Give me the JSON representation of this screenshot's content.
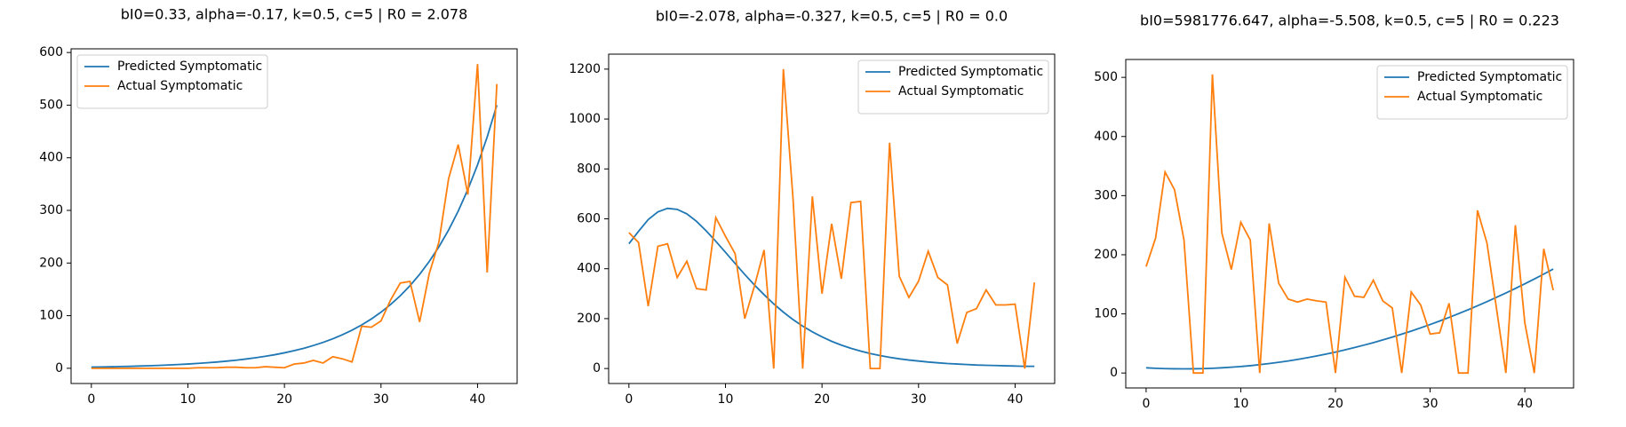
{
  "chart_data": [
    {
      "type": "line",
      "title": "bI0=0.33, alpha=-0.17, k=0.5, c=5 | R0 = 2.078",
      "x": [
        0,
        1,
        2,
        3,
        4,
        5,
        6,
        7,
        8,
        9,
        10,
        11,
        12,
        13,
        14,
        15,
        16,
        17,
        18,
        19,
        20,
        21,
        22,
        23,
        24,
        25,
        26,
        27,
        28,
        29,
        30,
        31,
        32,
        33,
        34,
        35,
        36,
        37,
        38,
        39,
        40,
        41,
        42
      ],
      "series": [
        {
          "name": "Predicted Symptomatic",
          "color": "#1f77b4",
          "values": [
            2.2,
            2.5,
            2.9,
            3.3,
            3.7,
            4.3,
            4.8,
            5.5,
            6.3,
            7.1,
            8.1,
            9.2,
            10.5,
            11.9,
            13.6,
            15.4,
            17.6,
            20.0,
            22.7,
            25.8,
            29.4,
            33.4,
            38.0,
            43.3,
            49.2,
            56.0,
            63.7,
            72.4,
            82.4,
            93.7,
            106.6,
            121.3,
            137.9,
            156.9,
            178.5,
            203.0,
            230.9,
            262.6,
            298.7,
            339.8,
            386.5,
            439.6,
            500
          ]
        },
        {
          "name": "Actual Symptomatic",
          "color": "#ff7f0e",
          "values": [
            0,
            0,
            0,
            0,
            0,
            0,
            0,
            0,
            0,
            0,
            0,
            1,
            1,
            1,
            2,
            2,
            1,
            1,
            3,
            2,
            1,
            8,
            10,
            15,
            10,
            22,
            18,
            12,
            80,
            78,
            90,
            130,
            162,
            165,
            88,
            180,
            240,
            360,
            425,
            330,
            578,
            182,
            540
          ]
        }
      ],
      "xlim": [
        -2.1,
        44.1
      ],
      "ylim": [
        -28.9,
        607
      ],
      "xticks": [
        0,
        10,
        20,
        30,
        40
      ],
      "yticks": [
        0,
        100,
        200,
        300,
        400,
        500,
        600
      ],
      "legend": "upper left"
    },
    {
      "type": "line",
      "title": "bI0=-2.078, alpha=-0.327, k=0.5, c=5 | R0 = 0.0",
      "x": [
        0,
        1,
        2,
        3,
        4,
        5,
        6,
        7,
        8,
        9,
        10,
        11,
        12,
        13,
        14,
        15,
        16,
        17,
        18,
        19,
        20,
        21,
        22,
        23,
        24,
        25,
        26,
        27,
        28,
        29,
        30,
        31,
        32,
        33,
        34,
        35,
        36,
        37,
        38,
        39,
        40,
        41,
        42
      ],
      "series": [
        {
          "name": "Predicted Symptomatic",
          "color": "#1f77b4",
          "values": [
            500,
            550,
            597,
            628,
            642,
            638,
            620,
            590,
            552,
            510,
            466,
            421,
            377,
            335,
            296,
            259,
            226,
            196,
            170,
            147,
            127,
            109,
            94,
            81,
            70,
            60,
            52,
            45,
            39,
            34,
            30,
            26,
            23,
            20,
            18,
            16,
            14,
            13,
            12,
            11,
            10,
            9,
            9
          ]
        },
        {
          "name": "Actual Symptomatic",
          "color": "#ff7f0e",
          "values": [
            545,
            505,
            250,
            490,
            500,
            365,
            430,
            320,
            315,
            605,
            530,
            460,
            200,
            330,
            475,
            0,
            1200,
            680,
            0,
            690,
            300,
            580,
            360,
            665,
            670,
            0,
            0,
            905,
            370,
            285,
            350,
            470,
            365,
            335,
            100,
            225,
            240,
            315,
            255,
            255,
            258,
            0,
            345
          ]
        }
      ],
      "xlim": [
        -2.1,
        44.1
      ],
      "ylim": [
        -60,
        1260
      ],
      "xticks": [
        0,
        10,
        20,
        30,
        40
      ],
      "yticks": [
        0,
        200,
        400,
        600,
        800,
        1000,
        1200
      ],
      "legend": "upper right"
    },
    {
      "type": "line",
      "title": "bI0=5981776.647, alpha=-5.508, k=0.5, c=5 | R0 = 0.223",
      "x": [
        0,
        1,
        2,
        3,
        4,
        5,
        6,
        7,
        8,
        9,
        10,
        11,
        12,
        13,
        14,
        15,
        16,
        17,
        18,
        19,
        20,
        21,
        22,
        23,
        24,
        25,
        26,
        27,
        28,
        29,
        30,
        31,
        32,
        33,
        34,
        35,
        36,
        37,
        38,
        39,
        40,
        41,
        42,
        43
      ],
      "series": [
        {
          "name": "Predicted Symptomatic",
          "color": "#1f77b4",
          "values": [
            8.8,
            8.0,
            7.4,
            7.1,
            7.0,
            7.1,
            7.4,
            8.0,
            8.8,
            9.8,
            11.0,
            12.4,
            14.1,
            16.0,
            18.1,
            20.4,
            23.0,
            25.8,
            28.8,
            32.0,
            35.4,
            39.1,
            43.0,
            47.1,
            51.4,
            56.0,
            60.7,
            65.7,
            70.9,
            76.4,
            82.0,
            87.9,
            94.0,
            100.4,
            106.9,
            113.7,
            120.7,
            127.9,
            135.3,
            143.0,
            150.9,
            159.0,
            167.3,
            175.8
          ]
        },
        {
          "name": "Actual Symptomatic",
          "color": "#ff7f0e",
          "values": [
            180,
            228,
            340,
            310,
            225,
            0,
            0,
            505,
            237,
            175,
            255,
            225,
            0,
            253,
            152,
            125,
            120,
            125,
            122,
            120,
            0,
            162,
            130,
            128,
            157,
            122,
            110,
            0,
            137,
            115,
            66,
            68,
            118,
            0,
            0,
            275,
            220,
            110,
            0,
            250,
            85,
            0,
            210,
            140
          ]
        }
      ],
      "xlim": [
        -2.15,
        45.15
      ],
      "ylim": [
        -25.25,
        530.25
      ],
      "xticks": [
        0,
        10,
        20,
        30,
        40
      ],
      "yticks": [
        0,
        100,
        200,
        300,
        400,
        500
      ],
      "legend": "upper right"
    }
  ]
}
